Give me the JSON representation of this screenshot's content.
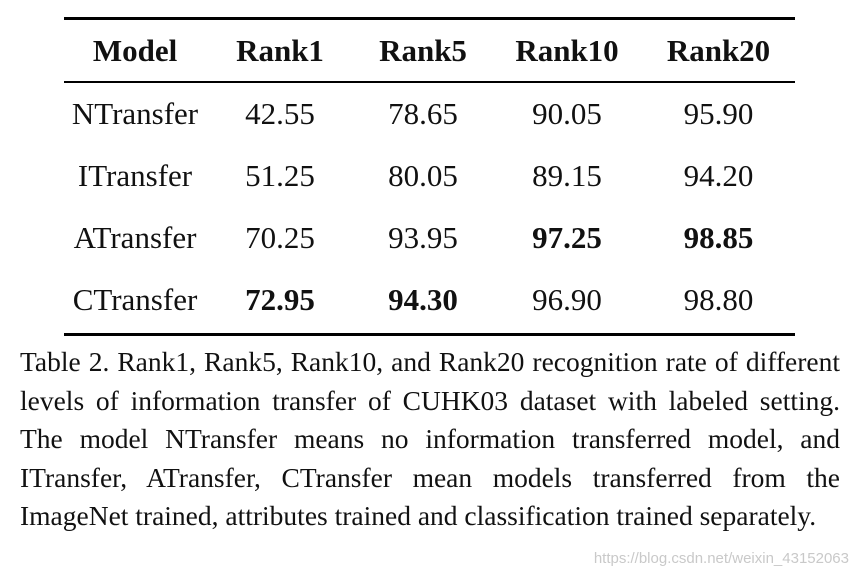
{
  "table": {
    "headers": [
      "Model",
      "Rank1",
      "Rank5",
      "Rank10",
      "Rank20"
    ],
    "rows": [
      {
        "model": "NTransfer",
        "values": [
          "42.55",
          "78.65",
          "90.05",
          "95.90"
        ],
        "bold": [
          false,
          false,
          false,
          false
        ]
      },
      {
        "model": "ITransfer",
        "values": [
          "51.25",
          "80.05",
          "89.15",
          "94.20"
        ],
        "bold": [
          false,
          false,
          false,
          false
        ]
      },
      {
        "model": "ATransfer",
        "values": [
          "70.25",
          "93.95",
          "97.25",
          "98.85"
        ],
        "bold": [
          false,
          false,
          true,
          true
        ]
      },
      {
        "model": "CTransfer",
        "values": [
          "72.95",
          "94.30",
          "96.90",
          "98.80"
        ],
        "bold": [
          true,
          true,
          false,
          false
        ]
      }
    ]
  },
  "caption": "Table 2. Rank1, Rank5, Rank10, and Rank20 recognition rate of different levels of information transfer of CUHK03 dataset with labeled setting. The model NTransfer means no information transferred model, and ITransfer, ATransfer, CTransfer mean models transferred from the ImageNet trained, attributes trained and classification trained separately.",
  "watermark": "https://blog.csdn.net/weixin_43152063"
}
